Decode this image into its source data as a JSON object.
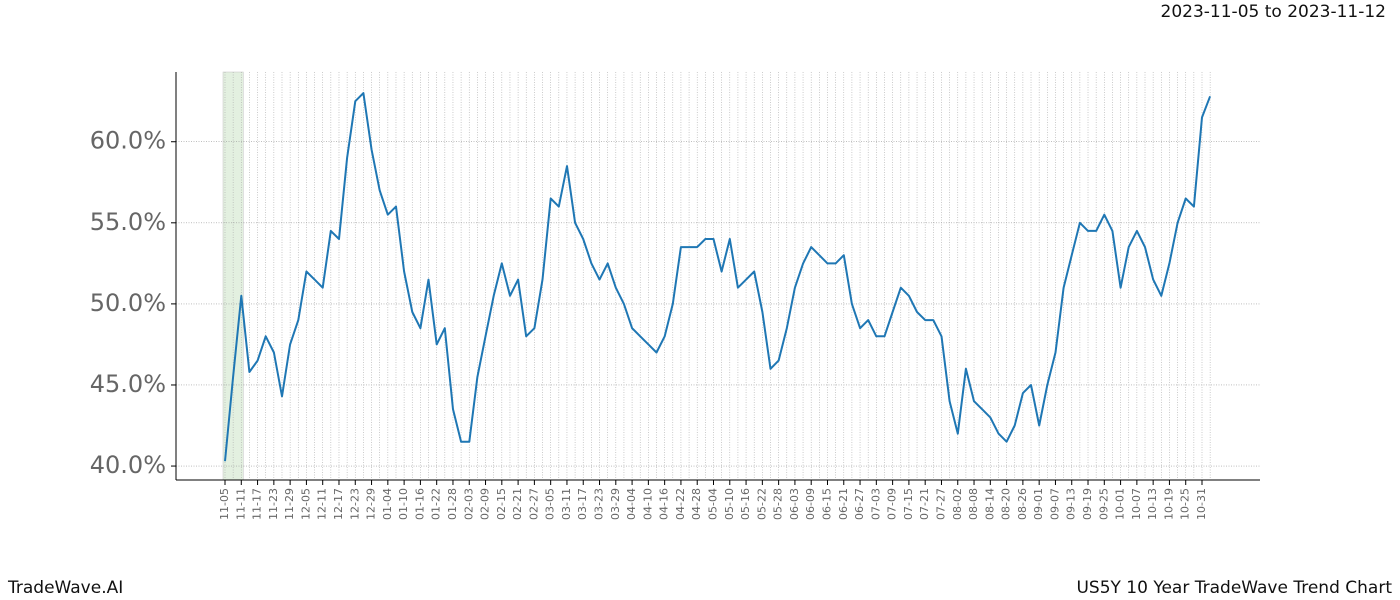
{
  "chart_data": {
    "type": "line",
    "title": "2023-11-05 to 2023-11-12",
    "brand": "TradeWave.AI",
    "subtitle": "US5Y 10 Year TradeWave Trend Chart",
    "categories": [
      "11-05",
      null,
      "11-11",
      null,
      "11-17",
      null,
      "11-23",
      null,
      "11-29",
      null,
      "12-05",
      null,
      "12-11",
      null,
      "12-17",
      null,
      "12-23",
      null,
      "12-29",
      null,
      "01-04",
      null,
      "01-10",
      null,
      "01-16",
      null,
      "01-22",
      null,
      "01-28",
      null,
      "02-03",
      null,
      "02-09",
      null,
      "02-15",
      null,
      "02-21",
      null,
      "02-27",
      null,
      "03-05",
      null,
      "03-11",
      null,
      "03-17",
      null,
      "03-23",
      null,
      "03-29",
      null,
      "04-04",
      null,
      "04-10",
      null,
      "04-16",
      null,
      "04-22",
      null,
      "04-28",
      null,
      "05-04",
      null,
      "05-10",
      null,
      "05-16",
      null,
      "05-22",
      null,
      "05-28",
      null,
      "06-03",
      null,
      "06-09",
      null,
      "06-15",
      null,
      "06-21",
      null,
      "06-27",
      null,
      "07-03",
      null,
      "07-09",
      null,
      "07-15",
      null,
      "07-21",
      null,
      "07-27",
      null,
      "08-02",
      null,
      "08-08",
      null,
      "08-14",
      null,
      "08-20",
      null,
      "08-26",
      null,
      "09-01",
      null,
      "09-07",
      null,
      "09-13",
      null,
      "09-19",
      null,
      "09-25",
      null,
      "10-01",
      null,
      "10-07",
      null,
      "10-13",
      null,
      "10-19",
      null,
      "10-25",
      null,
      "10-31",
      null
    ],
    "values": [
      40.3,
      45.5,
      50.5,
      45.8,
      46.5,
      48.0,
      47.0,
      44.3,
      47.5,
      49.0,
      52.0,
      51.5,
      51.0,
      54.5,
      54.0,
      59.0,
      62.5,
      63.0,
      59.5,
      57.0,
      55.5,
      56.0,
      52.0,
      49.5,
      48.5,
      51.5,
      47.5,
      48.5,
      43.5,
      41.5,
      41.5,
      45.5,
      48.0,
      50.5,
      52.5,
      50.5,
      51.5,
      48.0,
      48.5,
      51.5,
      56.5,
      56.0,
      58.5,
      55.0,
      54.0,
      52.5,
      51.5,
      52.5,
      51.0,
      50.0,
      48.5,
      48.0,
      47.5,
      47.0,
      48.0,
      50.0,
      53.5,
      53.5,
      53.5,
      54.0,
      54.0,
      52.0,
      54.0,
      51.0,
      51.5,
      52.0,
      49.5,
      46.0,
      46.5,
      48.5,
      51.0,
      52.5,
      53.5,
      53.0,
      52.5,
      52.5,
      53.0,
      50.0,
      48.5,
      49.0,
      48.0,
      48.0,
      49.5,
      51.0,
      50.5,
      49.5,
      49.0,
      49.0,
      48.0,
      44.0,
      42.0,
      46.0,
      44.0,
      43.5,
      43.0,
      42.0,
      41.5,
      42.5,
      44.5,
      45.0,
      42.5,
      45.0,
      47.0,
      51.0,
      53.0,
      55.0,
      54.5,
      54.5,
      55.5,
      54.5,
      51.0,
      53.5,
      54.5,
      53.5,
      51.5,
      50.5,
      52.5,
      55.0,
      56.5,
      56.0,
      61.5,
      62.8
    ],
    "color": "#1f77b4",
    "ylim": [
      39.14,
      64.3
    ],
    "yticks": [
      {
        "value": 40,
        "label": "40.0%"
      },
      {
        "value": 45,
        "label": "45.0%"
      },
      {
        "value": 50,
        "label": "50.0%"
      },
      {
        "value": 55,
        "label": "55.0%"
      },
      {
        "value": 60,
        "label": "60.0%"
      }
    ],
    "grid": true
  }
}
